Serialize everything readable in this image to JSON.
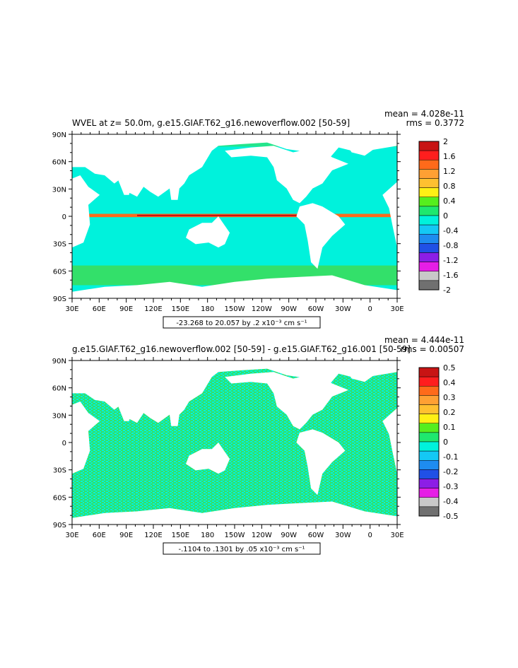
{
  "panels": [
    {
      "title": "WVEL at z=  50.0m, g.e15.GIAF.T62_g16.newoverflow.002 [50-59]",
      "mean": "mean = 4.028e-11",
      "rms": "rms = 0.3772",
      "range_label": "-23.268 to 20.057 by .2 x10⁻³ cm s⁻¹",
      "colorbar_labels": [
        "2",
        "1.6",
        "1.2",
        "0.8",
        "0.4",
        "0",
        "-0.4",
        "-0.8",
        "-1.2",
        "-1.6",
        "-2"
      ]
    },
    {
      "title": "g.e15.GIAF.T62_g16.newoverflow.002 [50-59] - g.e15.GIAF.T62_g16.001 [50-59]",
      "mean": "mean = 4.444e-11",
      "rms": "rms = 0.00507",
      "range_label": "-.1104 to .1301 by .05 x10⁻³ cm s⁻¹",
      "colorbar_labels": [
        "0.5",
        "0.4",
        "0.3",
        "0.2",
        "0.1",
        "0",
        "-0.1",
        "-0.2",
        "-0.3",
        "-0.4",
        "-0.5"
      ]
    }
  ],
  "lat_labels": [
    "90N",
    "60N",
    "30N",
    "0",
    "30S",
    "60S",
    "90S"
  ],
  "lon_labels": [
    "30E",
    "60E",
    "90E",
    "120E",
    "150E",
    "180",
    "150W",
    "120W",
    "90W",
    "60W",
    "30W",
    "0",
    "30E"
  ],
  "colors": {
    "ocean_main": "#00f2dc",
    "ocean_green": "#33e06a",
    "land": "#ffffff",
    "colorbar": [
      "#c81414",
      "#ff1e1e",
      "#ff6a1a",
      "#ffa033",
      "#ffc030",
      "#fff015",
      "#55ee1e",
      "#1ee86e",
      "#00f2dc",
      "#14c8f5",
      "#1e8cf0",
      "#2050e6",
      "#8c1ee6",
      "#e61ee6",
      "#c8c8c8",
      "#707070"
    ]
  }
}
